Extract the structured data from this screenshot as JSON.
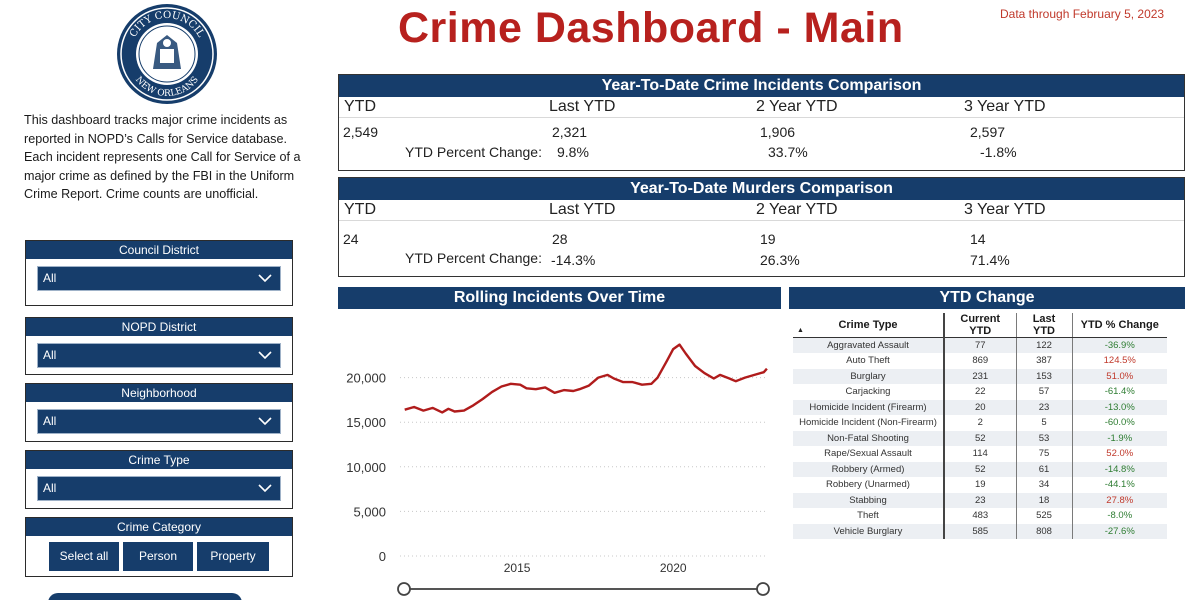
{
  "header": {
    "title": "Crime Dashboard - Main",
    "data_through": "Data through February 5, 2023",
    "seal_top_text": "CITY COUNCIL",
    "seal_bottom_text": "NEW ORLEANS"
  },
  "intro": "This dashboard tracks major crime incidents as reported in NOPD’s Calls for Service database. Each incident represents one Call for Service of a major crime as defined by the FBI in the Uniform Crime Report. Crime counts are unofficial.",
  "filters": {
    "council_district": {
      "label": "Council District",
      "value": "All"
    },
    "nopd_district": {
      "label": "NOPD District",
      "value": "All"
    },
    "neighborhood": {
      "label": "Neighborhood",
      "value": "All"
    },
    "crime_type": {
      "label": "Crime Type",
      "value": "All"
    },
    "crime_category": {
      "label": "Crime Category",
      "buttons": [
        "Select all",
        "Person",
        "Property"
      ]
    }
  },
  "incidents": {
    "title": "Year-To-Date Crime Incidents Comparison",
    "columns": [
      "YTD",
      "Last YTD",
      "2 Year YTD",
      "3 Year YTD"
    ],
    "values": [
      "2,549",
      "2,321",
      "1,906",
      "2,597"
    ],
    "pct_label": "YTD Percent Change:",
    "pct": [
      "9.8%",
      "33.7%",
      "-1.8%"
    ]
  },
  "murders": {
    "title": "Year-To-Date Murders Comparison",
    "columns": [
      "YTD",
      "Last YTD",
      "2 Year YTD",
      "3 Year YTD"
    ],
    "values": [
      "24",
      "28",
      "19",
      "14"
    ],
    "pct_label": "YTD Percent Change:",
    "pct": [
      "-14.3%",
      "26.3%",
      "71.4%"
    ]
  },
  "rolling": {
    "title": "Rolling Incidents Over Time"
  },
  "ytd_change": {
    "title": "YTD Change",
    "headers": [
      "Crime Type",
      "Current YTD",
      "Last YTD",
      "YTD % Change"
    ],
    "rows": [
      [
        "Aggravated Assault",
        "77",
        "122",
        "-36.9%"
      ],
      [
        "Auto Theft",
        "869",
        "387",
        "124.5%"
      ],
      [
        "Burglary",
        "231",
        "153",
        "51.0%"
      ],
      [
        "Carjacking",
        "22",
        "57",
        "-61.4%"
      ],
      [
        "Homicide Incident (Firearm)",
        "20",
        "23",
        "-13.0%"
      ],
      [
        "Homicide Incident (Non-Firearm)",
        "2",
        "5",
        "-60.0%"
      ],
      [
        "Non-Fatal Shooting",
        "52",
        "53",
        "-1.9%"
      ],
      [
        "Rape/Sexual Assault",
        "114",
        "75",
        "52.0%"
      ],
      [
        "Robbery (Armed)",
        "52",
        "61",
        "-14.8%"
      ],
      [
        "Robbery (Unarmed)",
        "19",
        "34",
        "-44.1%"
      ],
      [
        "Stabbing",
        "23",
        "18",
        "27.8%"
      ],
      [
        "Theft",
        "483",
        "525",
        "-8.0%"
      ],
      [
        "Vehicle Burglary",
        "585",
        "808",
        "-27.6%"
      ]
    ]
  },
  "colors": {
    "navy": "#163d6b",
    "title_red": "#b7211e",
    "line": "#b01c1c",
    "increase": "#c0392b",
    "decrease": "#2e7d32"
  },
  "chart_data": {
    "type": "line",
    "title": "Rolling Incidents Over Time",
    "ylim": [
      0,
      25000
    ],
    "yticks": [
      0,
      5000,
      10000,
      15000,
      20000
    ],
    "ytick_labels": [
      "0",
      "5,000",
      "10,000",
      "15,000",
      "20,000"
    ],
    "xticks": [
      2015,
      2020
    ],
    "xtick_labels": [
      "2015",
      "2020"
    ],
    "xlim": [
      2011.25,
      2023.1
    ],
    "series": [
      {
        "x": [
          2011.4,
          2011.7,
          2012.0,
          2012.3,
          2012.6,
          2012.8,
          2013.0,
          2013.3,
          2013.6,
          2013.9,
          2014.2,
          2014.5,
          2014.8,
          2015.1,
          2015.3,
          2015.6,
          2015.9,
          2016.2,
          2016.5,
          2016.8,
          2017.0,
          2017.3,
          2017.6,
          2017.9,
          2018.1,
          2018.4,
          2018.7,
          2019.0,
          2019.3,
          2019.5,
          2019.8,
          2020.0,
          2020.2,
          2020.4,
          2020.7,
          2021.0,
          2021.3,
          2021.5,
          2021.8,
          2022.0,
          2022.3,
          2022.6,
          2022.9,
          2023.0
        ],
        "y": [
          16400,
          16700,
          16300,
          16600,
          16100,
          16500,
          16200,
          16300,
          16900,
          17600,
          18400,
          19000,
          19300,
          19200,
          18800,
          18700,
          18900,
          18300,
          18600,
          18500,
          18700,
          19100,
          20000,
          20300,
          19900,
          19500,
          19500,
          19200,
          19300,
          20000,
          21900,
          23200,
          23700,
          22700,
          21300,
          20500,
          19900,
          20300,
          19900,
          19600,
          20000,
          20300,
          20600,
          21000
        ]
      }
    ]
  }
}
